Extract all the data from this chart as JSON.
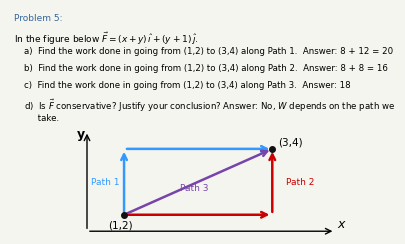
{
  "path1_color": "#3399ff",
  "path2_color": "#cc0000",
  "path3_color": "#7744aa",
  "point_color": "#111111",
  "background": "#f5f5f0",
  "p1": [
    1,
    2
  ],
  "p2": [
    3,
    4
  ],
  "p1_label": "(1,2)",
  "p2_label": "(3,4)",
  "path1_label": "Path 1",
  "path2_label": "Path 2",
  "path3_label": "Path 3",
  "xlabel": "x",
  "ylabel": "y",
  "title_text": "Problem 5:",
  "line2": "In the figure below $\\vec{F} = (x + y)\\,\\hat{\\imath} + (y + 1)\\,\\hat{\\jmath}$.",
  "line3": "a)  Find the work done in going from (1,2) to (3,4) along Path 1.  Answer: 8 + 12 = 20",
  "line4": "b)  Find the work done in going from (1,2) to (3,4) along Path 2.  Answer: 8 + 8 = 16",
  "line5": "c)  Find the work done in going from (1,2) to (3,4) along Path 3.  Answer: 18",
  "line6": "d)  Is $\\vec{F}$ conservative? Justify your conclusion? Answer: No, $W$ depends on the path we",
  "line7": "     take."
}
